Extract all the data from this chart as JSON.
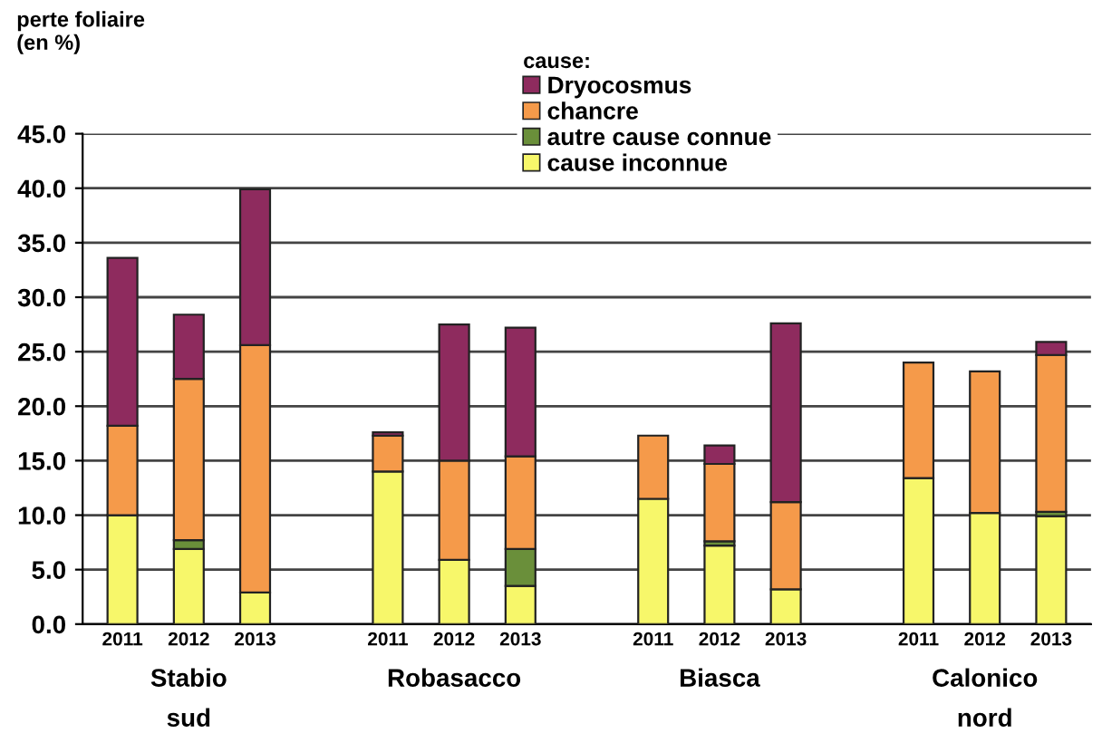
{
  "chart_data": {
    "type": "bar",
    "stacked": true,
    "ylabel": "perte foliaire\n(en %)",
    "legend_title": "cause:",
    "categories": [
      "2011",
      "2012",
      "2013",
      null,
      "2011",
      "2012",
      "2013",
      null,
      "2011",
      "2012",
      "2013",
      null,
      "2011",
      "2012",
      "2013"
    ],
    "annotations": [
      "Stabio\nsud",
      "Robasacco",
      "Biasca",
      "Calonico\nnord"
    ],
    "series": [
      {
        "name": "cause inconnue",
        "color": "#f7f76a",
        "values": [
          10.0,
          6.9,
          2.9,
          null,
          14.0,
          5.9,
          3.5,
          null,
          11.5,
          7.2,
          3.2,
          null,
          13.4,
          10.2,
          9.9
        ]
      },
      {
        "name": "autre cause connue",
        "color": "#6a8f3a",
        "values": [
          0,
          0.8,
          0,
          null,
          0,
          0,
          3.4,
          null,
          0,
          0.4,
          0,
          null,
          0,
          0,
          0.4
        ]
      },
      {
        "name": "chancre",
        "color": "#f59a4a",
        "values": [
          8.2,
          14.8,
          22.7,
          null,
          3.3,
          9.1,
          8.5,
          null,
          5.8,
          7.1,
          8.0,
          null,
          10.6,
          13.0,
          14.4
        ]
      },
      {
        "name": "Dryocosmus",
        "color": "#8e2b5e",
        "values": [
          15.4,
          5.9,
          14.3,
          null,
          0.3,
          12.5,
          11.8,
          null,
          0,
          1.7,
          16.4,
          null,
          0,
          0,
          1.2
        ]
      }
    ],
    "ylim": [
      0,
      45
    ],
    "yticks": [
      {
        "value": 0,
        "label": "0.0"
      },
      {
        "value": 5,
        "label": "5.0"
      },
      {
        "value": 10,
        "label": "10.0"
      },
      {
        "value": 15,
        "label": "15.0"
      },
      {
        "value": 20,
        "label": "20.0"
      },
      {
        "value": 25,
        "label": "25.0"
      },
      {
        "value": 30,
        "label": "30.0"
      },
      {
        "value": 35,
        "label": "35.0"
      },
      {
        "value": 40,
        "label": "40.0"
      },
      {
        "value": 45,
        "label": "45.0"
      }
    ],
    "grid": "y",
    "legend": "top"
  }
}
